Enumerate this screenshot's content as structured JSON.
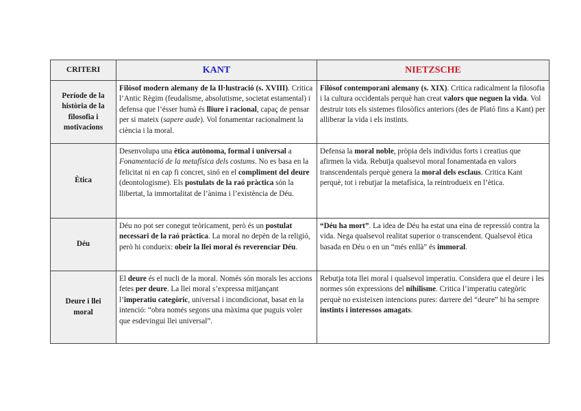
{
  "colors": {
    "kant": "#1f1fcc",
    "nietzsche": "#cc1a2a",
    "header_bg": "#efefef"
  },
  "header": {
    "criteri": "CRITERI",
    "kant": "KANT",
    "nietzsche": "NIETZSCHE"
  },
  "rows": [
    {
      "label": "Període de la història de la filosofia i motivacions",
      "kant": [
        {
          "t": "Filòsof modern alemany de la Il·lustració (s. XVIII)",
          "b": true
        },
        {
          "t": ". Critica l’Antic Règim (feudalisme, absolutisme, societat estamental) i defensa que l’ésser humà és "
        },
        {
          "t": "lliure i racional",
          "b": true
        },
        {
          "t": ", capaç de pensar per si mateix ("
        },
        {
          "t": "sapere aude",
          "i": true
        },
        {
          "t": "). Vol fonamentar racionalment la ciència i la moral."
        }
      ],
      "nietzsche": [
        {
          "t": "Filòsof contemporani alemany (s. XIX)",
          "b": true
        },
        {
          "t": ". Critica radicalment la filosofia i la cultura occidentals perquè han creat "
        },
        {
          "t": "valors que neguen la vida",
          "b": true
        },
        {
          "t": ". Vol destruir tots els sistemes filosòfics anteriors (des de Plató fins a Kant) per alliberar la vida i els instints."
        }
      ]
    },
    {
      "label": "Ètica",
      "kant": [
        {
          "t": "Desenvolupa una "
        },
        {
          "t": "ètica autònoma, formal i universal",
          "b": true
        },
        {
          "t": " a "
        },
        {
          "t": "Fonamentació de la metafísica dels costums",
          "i": true
        },
        {
          "t": ". No es basa en la felicitat ni en cap fi concret, sinó en el "
        },
        {
          "t": "compliment del deure",
          "b": true
        },
        {
          "t": " (deontologisme). Els "
        },
        {
          "t": "postulats de la raó pràctica",
          "b": true
        },
        {
          "t": " són la llibertat, la immortalitat de l’ànima i l’existència de Déu."
        }
      ],
      "nietzsche": [
        {
          "t": "Defensa la "
        },
        {
          "t": "moral noble",
          "b": true
        },
        {
          "t": ", pròpia dels individus forts i creatius que afirmen la vida. Rebutja qualsevol moral fonamentada en valors transcendentals perquè genera la "
        },
        {
          "t": "moral dels esclaus",
          "b": true
        },
        {
          "t": ". Critica Kant perquè, tot i rebutjar la metafísica, la reintrodueix en l’ètica."
        }
      ]
    },
    {
      "label": "Déu",
      "kant": [
        {
          "t": "Déu no pot ser conegut teòricament, però és un "
        },
        {
          "t": "postulat necessari de la raó pràctica",
          "b": true
        },
        {
          "t": ". La moral no depèn de la religió, però hi condueix: "
        },
        {
          "t": "obeir la llei moral és reverenciar Déu",
          "b": true
        },
        {
          "t": "."
        }
      ],
      "nietzsche": [
        {
          "t": "“Déu ha mort”",
          "b": true
        },
        {
          "t": ". La idea de Déu ha estat una eina de repressió contra la vida. Nega qualsevol realitat superior o transcendent. Qualsevol ètica basada en Déu o en un “més enllà” és "
        },
        {
          "t": "immoral",
          "b": true
        },
        {
          "t": "."
        }
      ]
    },
    {
      "label": "Deure i llei moral",
      "kant": [
        {
          "t": "El "
        },
        {
          "t": "deure",
          "b": true
        },
        {
          "t": " és el nucli de la moral. Només són morals les accions fetes "
        },
        {
          "t": "per deure",
          "b": true
        },
        {
          "t": ". La llei moral s’expressa mitjançant l’"
        },
        {
          "t": "imperatiu categòric",
          "b": true
        },
        {
          "t": ", universal i incondicionat, basat en la intenció: “obra només segons una màxima que puguis voler que esdevingui llei universal”."
        }
      ],
      "nietzsche": [
        {
          "t": "Rebutja tota llei moral i qualsevol imperatiu. Considera que el deure i les normes són expressions del "
        },
        {
          "t": "nihilisme",
          "b": true
        },
        {
          "t": ". Critica l’imperatiu categòric perquè no existeixen intencions pures: darrere del “deure” hi ha sempre "
        },
        {
          "t": "instints i interessos amagats",
          "b": true
        },
        {
          "t": "."
        }
      ]
    }
  ]
}
